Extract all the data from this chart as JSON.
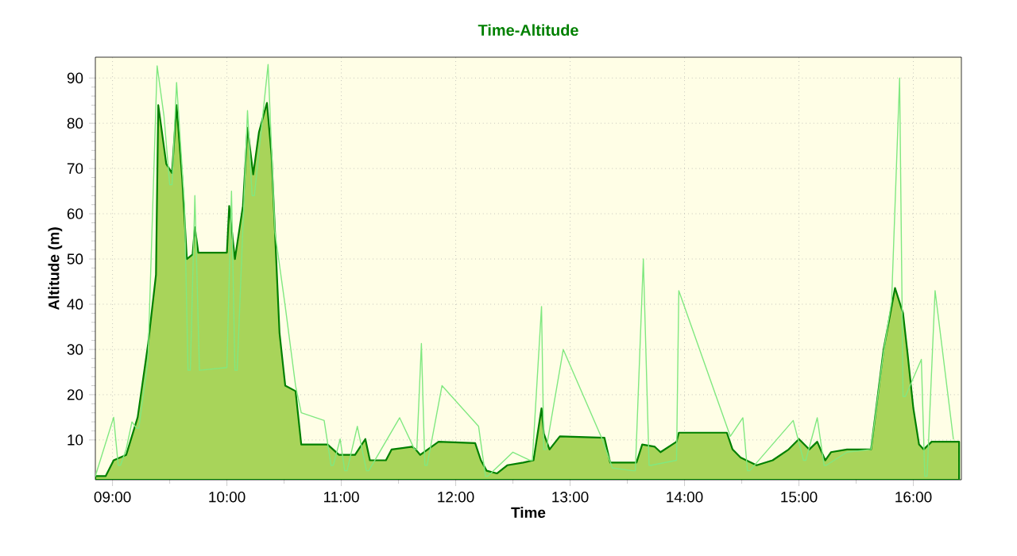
{
  "chart_data": {
    "type": "area",
    "title": "Time-Altitude",
    "xlabel": "Time",
    "ylabel": "Altitude (m)",
    "xlim": [
      8.85,
      16.42
    ],
    "ylim": [
      1.2,
      94.6
    ],
    "xticks": [
      {
        "value": 9,
        "label": "09:00"
      },
      {
        "value": 10,
        "label": "10:00"
      },
      {
        "value": 11,
        "label": "11:00"
      },
      {
        "value": 12,
        "label": "12:00"
      },
      {
        "value": 13,
        "label": "13:00"
      },
      {
        "value": 14,
        "label": "14:00"
      },
      {
        "value": 15,
        "label": "15:00"
      },
      {
        "value": 16,
        "label": "16:00"
      }
    ],
    "yticks": [
      10,
      20,
      30,
      40,
      50,
      60,
      70,
      80,
      90
    ],
    "grid": true,
    "series": [
      {
        "color": "#a8d45a",
        "x": [
          8.85,
          8.94,
          9.01,
          9.12,
          9.22,
          9.31,
          9.38,
          9.4,
          9.47,
          9.52,
          9.56,
          9.61,
          9.65,
          9.7,
          9.72,
          9.75,
          10.0,
          10.02,
          10.07,
          10.14,
          10.18,
          10.23,
          10.28,
          10.35,
          10.39,
          10.46,
          10.51,
          10.6,
          10.65,
          10.88,
          10.98,
          11.12,
          11.21,
          11.25,
          11.39,
          11.44,
          11.62,
          11.65,
          11.69,
          11.85,
          12.17,
          12.22,
          12.27,
          12.36,
          12.45,
          12.59,
          12.68,
          12.75,
          12.77,
          12.82,
          12.91,
          13.3,
          13.35,
          13.58,
          13.63,
          13.74,
          13.79,
          13.93,
          13.95,
          14.37,
          14.42,
          14.49,
          14.63,
          14.77,
          14.91,
          15.0,
          15.09,
          15.16,
          15.23,
          15.28,
          15.42,
          15.63,
          15.7,
          15.74,
          15.84,
          15.91,
          15.95,
          16.0,
          16.05,
          16.09,
          16.16,
          16.35,
          16.4
        ],
        "values": [
          2,
          2,
          5.5,
          6.7,
          15,
          31,
          46.5,
          84,
          71,
          69,
          84,
          67.6,
          50,
          51,
          57,
          51.4,
          51.4,
          61.7,
          50,
          61.7,
          79,
          68.7,
          78,
          84.5,
          73,
          33.6,
          22,
          20.8,
          9,
          9,
          6.7,
          6.7,
          10.2,
          5.5,
          5.5,
          7.9,
          8.5,
          7.9,
          6.7,
          9.6,
          9.3,
          5.5,
          3.2,
          2.6,
          4.4,
          5,
          5.5,
          17,
          11.4,
          7.9,
          10.8,
          10.5,
          5,
          5,
          9,
          8.5,
          7.3,
          9.6,
          11.6,
          11.6,
          7.9,
          6.1,
          4.4,
          5.5,
          7.9,
          10.2,
          7.9,
          9.6,
          5.5,
          7.3,
          7.9,
          7.9,
          22,
          30,
          43.6,
          38,
          29,
          17,
          9,
          7.9,
          9.6,
          9.6,
          9.6
        ]
      },
      {
        "type": "line",
        "color": "#80e880",
        "x": [
          8.85,
          9.01,
          9.05,
          9.07,
          9.12,
          9.17,
          9.21,
          9.23,
          9.31,
          9.39,
          9.45,
          9.5,
          9.52,
          9.56,
          9.63,
          9.66,
          9.68,
          9.72,
          9.76,
          10.0,
          10.04,
          10.07,
          10.09,
          10.18,
          10.22,
          10.24,
          10.36,
          10.42,
          10.51,
          10.6,
          10.65,
          10.85,
          10.91,
          10.93,
          10.99,
          11.03,
          11.05,
          11.14,
          11.22,
          11.24,
          11.51,
          11.64,
          11.66,
          11.7,
          11.73,
          11.75,
          11.88,
          12.2,
          12.26,
          12.28,
          12.5,
          12.65,
          12.67,
          12.75,
          12.77,
          12.79,
          12.94,
          13.28,
          13.37,
          13.55,
          13.57,
          13.64,
          13.69,
          13.71,
          13.93,
          13.95,
          14.4,
          14.51,
          14.55,
          14.57,
          14.95,
          15.04,
          15.06,
          15.16,
          15.22,
          15.24,
          15.42,
          15.63,
          15.74,
          15.81,
          15.88,
          15.91,
          15.93,
          16.07,
          16.1,
          16.12,
          16.19,
          16.35
        ],
        "values": [
          2,
          15,
          4.4,
          4.4,
          8,
          14,
          12.6,
          12.6,
          27.8,
          92.7,
          81.6,
          66.4,
          66.4,
          89,
          61.7,
          25.4,
          25.4,
          64,
          25.4,
          26,
          65,
          25.4,
          25.4,
          82.8,
          64,
          64,
          93,
          55.9,
          39.5,
          22,
          16,
          14.3,
          4.4,
          4.4,
          10.2,
          3.2,
          3.2,
          13,
          3.2,
          3.2,
          14.9,
          7.9,
          7.9,
          31.3,
          4.4,
          4.4,
          22,
          13,
          2,
          2,
          7.3,
          5.5,
          5.5,
          39.5,
          7.9,
          7.9,
          30,
          10.2,
          3.8,
          3.2,
          3.2,
          50,
          4.4,
          4.4,
          5.5,
          43,
          10.8,
          14.9,
          3.2,
          3.2,
          14.3,
          5.5,
          5.5,
          14.9,
          4.4,
          4.4,
          7.3,
          7.9,
          29.5,
          40.6,
          90,
          19.6,
          19.6,
          27.8,
          2,
          2,
          43,
          10.2
        ]
      }
    ]
  }
}
